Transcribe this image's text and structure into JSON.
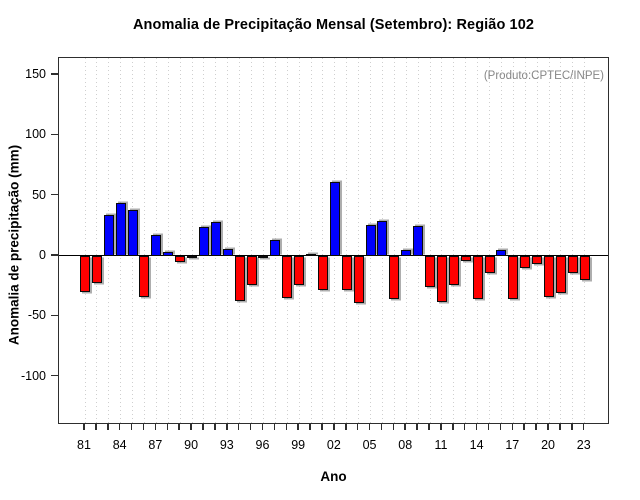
{
  "chart_data": {
    "type": "bar",
    "title": "Anomalia de Precipitação Mensal (Setembro): Região 102",
    "xlabel": "Ano",
    "ylabel": "Anomalia de precipitação (mm)",
    "annotation": "(Produto:CPTEC/INPE)",
    "categories": [
      "81",
      "82",
      "83",
      "84",
      "85",
      "86",
      "87",
      "88",
      "89",
      "90",
      "91",
      "92",
      "93",
      "94",
      "95",
      "96",
      "97",
      "98",
      "99",
      "00",
      "01",
      "02",
      "03",
      "04",
      "05",
      "06",
      "07",
      "08",
      "09",
      "10",
      "11",
      "12",
      "13",
      "14",
      "15",
      "16",
      "17",
      "18",
      "19",
      "20",
      "21",
      "22",
      "23"
    ],
    "values": [
      -30,
      -22,
      34,
      44,
      38,
      -34,
      17,
      3,
      -5,
      -2,
      24,
      28,
      6,
      -37,
      -24,
      -1,
      13,
      -35,
      -24,
      2,
      -28,
      61,
      -28,
      -39,
      26,
      29,
      -36,
      5,
      25,
      -26,
      -38,
      -24,
      -4,
      -36,
      -14,
      5,
      -36,
      -10,
      -7,
      -34,
      -31,
      -14,
      -20
    ],
    "x_tick_label_every": 3,
    "yticks": [
      150,
      100,
      50,
      0,
      -50,
      -100
    ],
    "ylim": [
      -140,
      164
    ],
    "grid": "vertical-dashed-per-category",
    "legend": "none",
    "colors": {
      "positive": "#0000ff",
      "negative": "#ff0000",
      "bar_border": "#0a0a0a",
      "annotation_text": "#878787",
      "gridline": "#cfcfcf"
    }
  }
}
